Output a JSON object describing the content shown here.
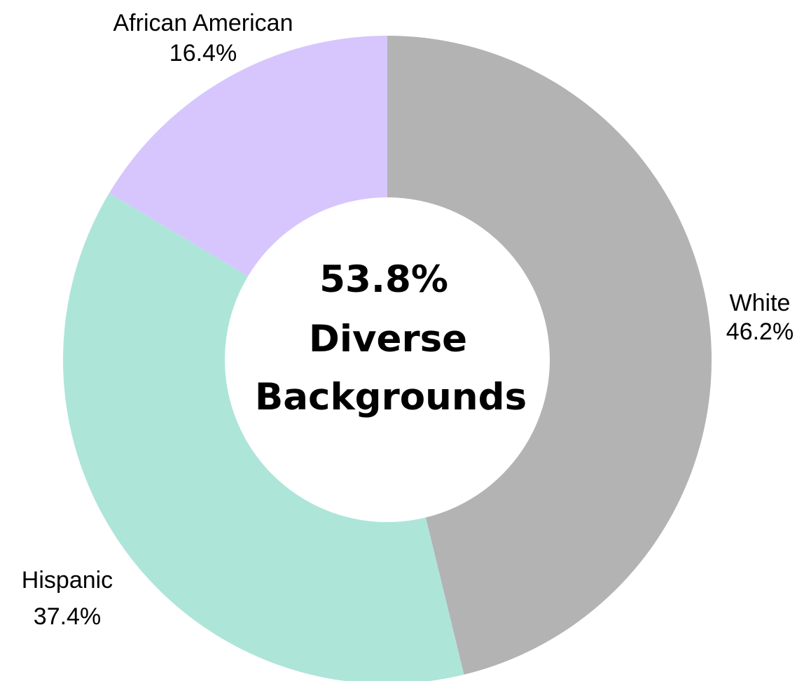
{
  "chart_data": {
    "type": "pie",
    "variant": "donut",
    "center_label": {
      "line1": "53.8%",
      "line2": "Diverse",
      "line3": "Backgrounds"
    },
    "slices": [
      {
        "label": "White",
        "value": 46.2,
        "value_label": "46.2%",
        "color": "#b3b3b3"
      },
      {
        "label": "Hispanic",
        "value": 37.4,
        "value_label": "37.4%",
        "color": "#ade5d9"
      },
      {
        "label": "African American",
        "value": 16.4,
        "value_label": "16.4%",
        "color": "#d7c6fd"
      }
    ],
    "start": "12 o'clock",
    "direction": "clockwise",
    "legend": "none"
  }
}
